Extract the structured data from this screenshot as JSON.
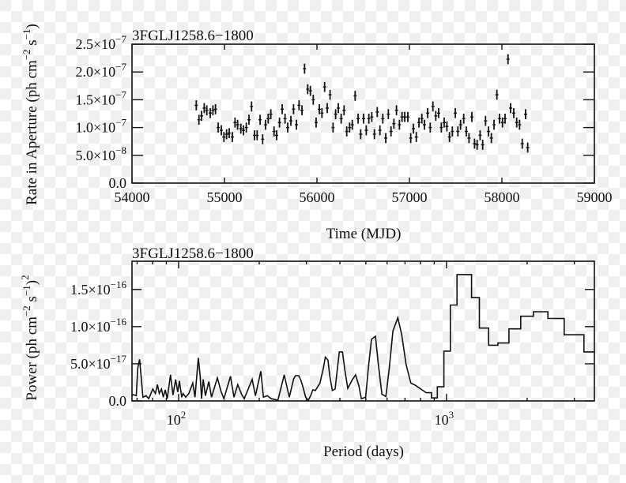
{
  "chart_data": [
    {
      "type": "scatter",
      "title": "3FGLJ1258.6−1800",
      "xlabel": "Time (MJD)",
      "ylabel": "Rate in Aperture (ph cm−2 s−1)",
      "ylabel_parts": {
        "main": "Rate in Aperture (ph cm",
        "e1": "−2",
        "mid": " s",
        "e2": "−1",
        "end": ")"
      },
      "xlim": [
        54000,
        59000
      ],
      "ylim": [
        0,
        2.5e-07
      ],
      "xticks": [
        54000,
        55000,
        56000,
        57000,
        58000,
        59000
      ],
      "xticklabels": [
        "54000",
        "55000",
        "56000",
        "57000",
        "58000",
        "59000"
      ],
      "yticks": [
        0,
        5e-08,
        1e-07,
        1.5e-07,
        2e-07,
        2.5e-07
      ],
      "yticklabels": [
        {
          "m": "0.0",
          "e": ""
        },
        {
          "m": "5.0×10",
          "e": "−8"
        },
        {
          "m": "1.0×10",
          "e": "−7"
        },
        {
          "m": "1.5×10",
          "e": "−7"
        },
        {
          "m": "2.0×10",
          "e": "−7"
        },
        {
          "m": "2.5×10",
          "e": "−7"
        }
      ],
      "y_unit": 1e-07,
      "y_error": 0.09,
      "x": [
        54695,
        54724,
        54752,
        54781,
        54809,
        54846,
        54875,
        54903,
        54932,
        54966,
        54994,
        55023,
        55051,
        55085,
        55114,
        55142,
        55177,
        55205,
        55236,
        55265,
        55293,
        55325,
        55353,
        55385,
        55413,
        55444,
        55473,
        55501,
        55536,
        55564,
        55595,
        55624,
        55655,
        55684,
        55718,
        55747,
        55778,
        55806,
        55838,
        55866,
        55900,
        55929,
        55960,
        55991,
        56026,
        56054,
        56083,
        56111,
        56142,
        56174,
        56202,
        56231,
        56262,
        56293,
        56322,
        56353,
        56382,
        56413,
        56445,
        56473,
        56504,
        56533,
        56561,
        56593,
        56621,
        56652,
        56681,
        56712,
        56744,
        56772,
        56801,
        56832,
        56860,
        56892,
        56920,
        56949,
        56983,
        57014,
        57043,
        57074,
        57103,
        57134,
        57162,
        57197,
        57225,
        57254,
        57285,
        57316,
        57345,
        57376,
        57405,
        57433,
        57464,
        57496,
        57524,
        57553,
        57587,
        57615,
        57644,
        57675,
        57704,
        57732,
        57764,
        57792,
        57823,
        57855,
        57886,
        57915,
        57946,
        57974,
        58006,
        58034,
        58066,
        58094,
        58128,
        58160,
        58191,
        58220,
        58256,
        58279
      ],
      "y": [
        1.4,
        1.14,
        1.21,
        1.35,
        1.31,
        1.26,
        1.31,
        1.33,
        1.0,
        0.95,
        0.83,
        0.88,
        0.9,
        0.83,
        1.09,
        1.05,
        0.98,
        0.95,
        1.0,
        1.14,
        1.38,
        0.86,
        0.86,
        1.14,
        0.79,
        1.05,
        1.16,
        1.24,
        0.93,
        0.86,
        1.09,
        1.33,
        1.16,
        1.0,
        1.12,
        1.33,
        1.05,
        1.4,
        1.31,
        2.06,
        1.69,
        1.66,
        1.5,
        1.09,
        1.33,
        1.26,
        1.73,
        1.35,
        1.59,
        1.0,
        1.24,
        1.35,
        1.16,
        1.31,
        0.93,
        1.0,
        1.05,
        1.57,
        1.16,
        0.88,
        1.16,
        0.95,
        1.16,
        1.19,
        0.88,
        1.28,
        0.95,
        1.16,
        0.81,
        1.24,
        0.93,
        1.07,
        1.31,
        1.05,
        1.19,
        1.19,
        1.19,
        0.81,
        0.98,
        0.83,
        1.09,
        1.16,
        1.05,
        1.26,
        1.0,
        1.38,
        1.21,
        1.26,
        1.0,
        1.09,
        1.02,
        0.83,
        0.93,
        1.26,
        0.93,
        1.05,
        1.16,
        0.93,
        0.81,
        1.19,
        0.71,
        0.69,
        0.86,
        0.69,
        1.12,
        0.93,
        0.81,
        1.05,
        1.59,
        1.16,
        1.09,
        1.16,
        2.23,
        1.35,
        1.26,
        1.09,
        1.05,
        0.71,
        1.24,
        0.64
      ]
    },
    {
      "type": "line",
      "title": "3FGLJ1258.6−1800",
      "xlabel": "Period (days)",
      "ylabel": "Power (ph cm−2 s−1)2",
      "ylabel_parts": {
        "main": "Power (ph cm",
        "e1": "−2",
        "mid": " s",
        "e2": "−1",
        "end": ")",
        "e3": "2"
      },
      "xscale": "log",
      "xlim": [
        67,
        3565
      ],
      "ylim": [
        0,
        1.88e-16
      ],
      "xticklabels": [
        {
          "v": 100,
          "m": "10",
          "e": "2"
        },
        {
          "v": 1000,
          "m": "10",
          "e": "3"
        }
      ],
      "yticks": [
        0,
        5e-17,
        1e-16,
        1.5e-16
      ],
      "yticklabels": [
        {
          "m": "0.0",
          "e": ""
        },
        {
          "m": "5.0×10",
          "e": "−17"
        },
        {
          "m": "1.0×10",
          "e": "−16"
        },
        {
          "m": "1.5×10",
          "e": "−16"
        }
      ],
      "y_unit": 1e-16,
      "points": [
        [
          67,
          0.07
        ],
        [
          67.6,
          0.085
        ],
        [
          69.5,
          0.07
        ],
        [
          70.4,
          0.44
        ],
        [
          71.5,
          0.56
        ],
        [
          72.6,
          0.3
        ],
        [
          73.6,
          0.05
        ],
        [
          75.6,
          0.07
        ],
        [
          77.4,
          0.03
        ],
        [
          80.1,
          0.16
        ],
        [
          81.9,
          0.1
        ],
        [
          83.4,
          0.22
        ],
        [
          84.7,
          0.1
        ],
        [
          86.3,
          0.16
        ],
        [
          87.7,
          0.05
        ],
        [
          89.1,
          0.15
        ],
        [
          90.7,
          0.03
        ],
        [
          93.3,
          0.35
        ],
        [
          95.3,
          0.08
        ],
        [
          97.5,
          0.29
        ],
        [
          99.3,
          0.12
        ],
        [
          100.7,
          0.27
        ],
        [
          102.7,
          0.05
        ],
        [
          103.9,
          0.1
        ],
        [
          106.3,
          0.05
        ],
        [
          109.2,
          0.1
        ],
        [
          113.0,
          0.24
        ],
        [
          115.1,
          0.05
        ],
        [
          118.5,
          0.58
        ],
        [
          120.4,
          0.33
        ],
        [
          121.8,
          0.03
        ],
        [
          123.6,
          0.29
        ],
        [
          125.9,
          0.07
        ],
        [
          129.7,
          0.26
        ],
        [
          132.7,
          0.05
        ],
        [
          139.5,
          0.31
        ],
        [
          144.3,
          0.12
        ],
        [
          147.6,
          0.03
        ],
        [
          156.2,
          0.33
        ],
        [
          160.9,
          0.05
        ],
        [
          166.3,
          0.22
        ],
        [
          171.8,
          0.09
        ],
        [
          175.8,
          0.03
        ],
        [
          188.1,
          0.29
        ],
        [
          193.6,
          0.07
        ],
        [
          202.8,
          0.4
        ],
        [
          207.3,
          0.05
        ],
        [
          214.4,
          0.07
        ],
        [
          221.8,
          0.03
        ],
        [
          234.8,
          0.01
        ],
        [
          248,
          0.35
        ],
        [
          259,
          0.05
        ],
        [
          269,
          0.3
        ],
        [
          273,
          0.34
        ],
        [
          281,
          0.34
        ],
        [
          286,
          0.28
        ],
        [
          291,
          0.19
        ],
        [
          298,
          0.05
        ],
        [
          305,
          0.01
        ],
        [
          312,
          0.08
        ],
        [
          317,
          0.15
        ],
        [
          324,
          0.14
        ],
        [
          337,
          0.24
        ],
        [
          347,
          0.44
        ],
        [
          353,
          0.59
        ],
        [
          361,
          0.55
        ],
        [
          367,
          0.33
        ],
        [
          375,
          0.14
        ],
        [
          384,
          0.16
        ],
        [
          391,
          0.42
        ],
        [
          398,
          0.66
        ],
        [
          409,
          0.66
        ],
        [
          418,
          0.4
        ],
        [
          428,
          0.17
        ],
        [
          446,
          0.29
        ],
        [
          458,
          0.35
        ],
        [
          471,
          0.2
        ],
        [
          481,
          0.03
        ],
        [
          499,
          0.05
        ],
        [
          511,
          0.45
        ],
        [
          525,
          0.83
        ],
        [
          543,
          0.87
        ],
        [
          556,
          0.51
        ],
        [
          574,
          0.09
        ],
        [
          594,
          0.06
        ],
        [
          612,
          0.45
        ],
        [
          631,
          0.94
        ],
        [
          658,
          1.12
        ],
        [
          680,
          0.9
        ],
        [
          707,
          0.49
        ],
        [
          736,
          0.24
        ],
        [
          765,
          0.21
        ],
        [
          840,
          0.11
        ],
        [
          879,
          0.11
        ],
        [
          879,
          0.04
        ],
        [
          924,
          0.04
        ],
        [
          924,
          0.19
        ],
        [
          978,
          0.19
        ],
        [
          978,
          0.67
        ],
        [
          1034,
          0.67
        ],
        [
          1034,
          1.29
        ],
        [
          1095,
          1.29
        ],
        [
          1095,
          1.7
        ],
        [
          1240,
          1.7
        ],
        [
          1240,
          1.39
        ],
        [
          1327,
          1.39
        ],
        [
          1327,
          0.98
        ],
        [
          1436,
          0.98
        ],
        [
          1436,
          0.75
        ],
        [
          1555,
          0.75
        ],
        [
          1555,
          0.78
        ],
        [
          1711,
          0.78
        ],
        [
          1711,
          0.97
        ],
        [
          1893,
          0.97
        ],
        [
          1893,
          1.14
        ],
        [
          2111,
          1.14
        ],
        [
          2111,
          1.2
        ],
        [
          2391,
          1.2
        ],
        [
          2391,
          1.11
        ],
        [
          2751,
          1.11
        ],
        [
          2751,
          0.89
        ],
        [
          3260,
          0.89
        ],
        [
          3260,
          0.66
        ],
        [
          3565,
          0.66
        ]
      ]
    }
  ]
}
